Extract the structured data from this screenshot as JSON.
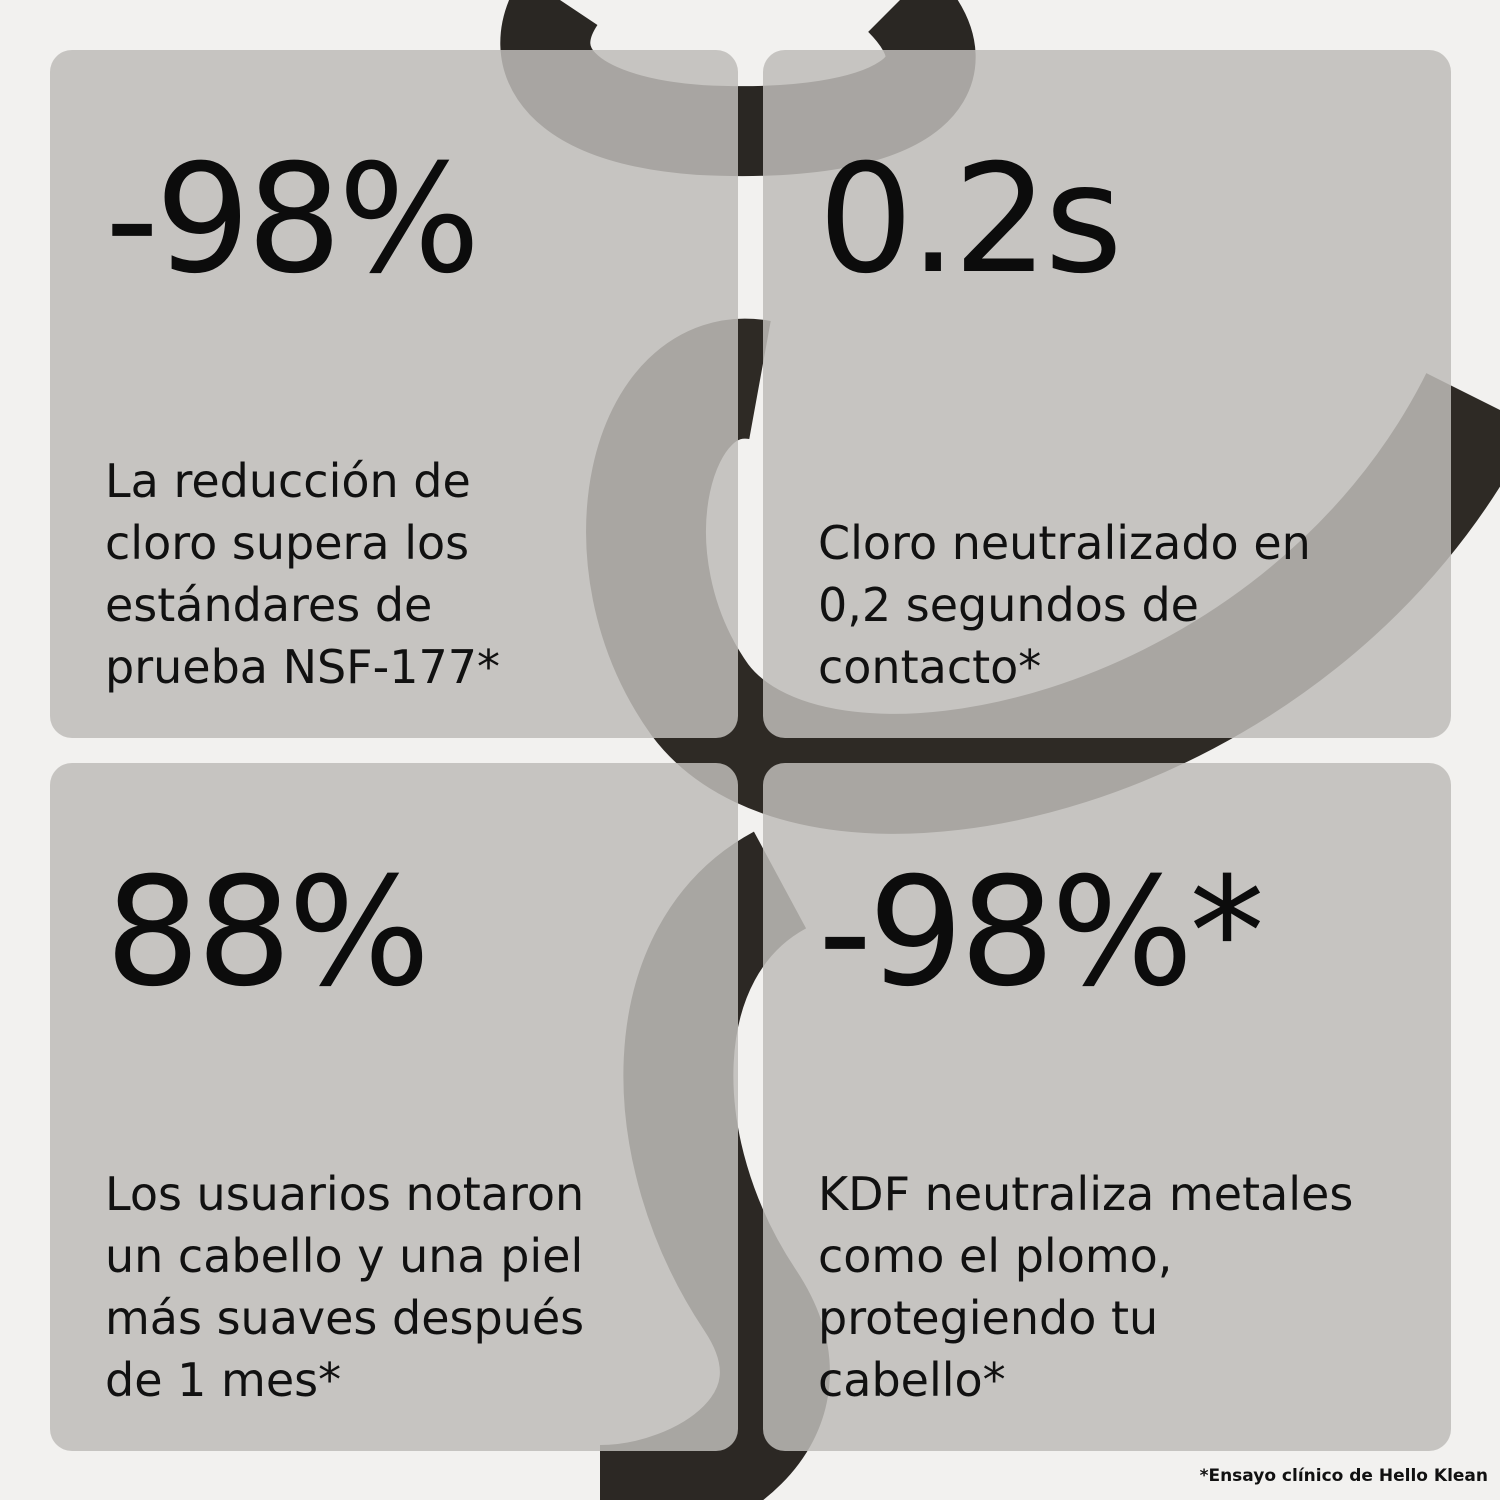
{
  "cards": [
    {
      "stat": "-98%",
      "lines": [
        "La reducción de",
        "cloro supera los",
        "estándares de",
        "prueba NSF-177*"
      ]
    },
    {
      "stat": "0.2s",
      "lines": [
        "Cloro neutralizado en",
        "0,2 segundos de",
        "contacto*"
      ]
    },
    {
      "stat": "88%",
      "lines": [
        "Los usuarios notaron",
        "un cabello y una piel",
        "más suaves después",
        "de 1 mes*"
      ]
    },
    {
      "stat": "-98%*",
      "lines": [
        "KDF neutraliza metales",
        "como el plomo,",
        "protegiendo tu",
        "cabello*"
      ]
    }
  ],
  "footnote": "*Ensayo clínico de Hello Klean"
}
